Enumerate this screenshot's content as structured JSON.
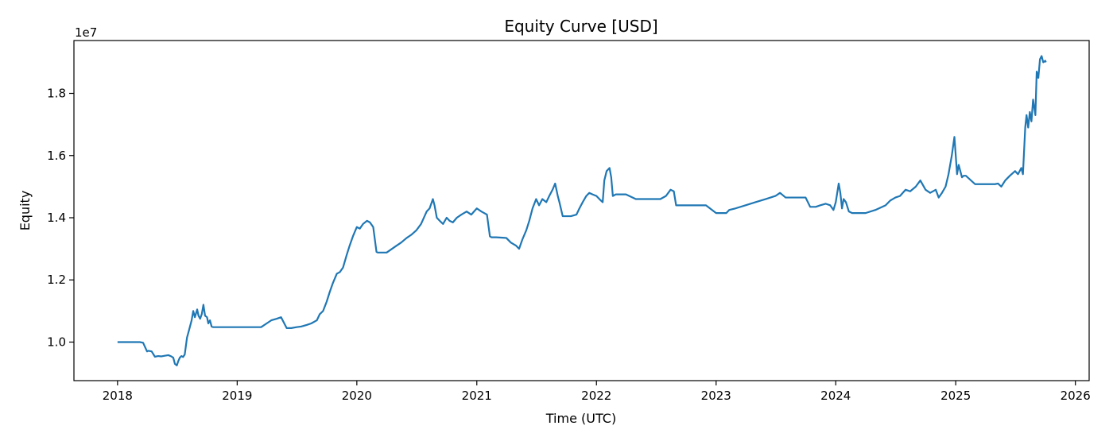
{
  "chart_data": {
    "type": "line",
    "title": "Equity Curve [USD]",
    "xlabel": "Time (UTC)",
    "ylabel": "Equity",
    "y_offset_label": "1e7",
    "y_scale_factor": 10000000,
    "xlim": [
      "2017-08-21",
      "2026-02-12"
    ],
    "ylim": [
      8760000,
      19700000
    ],
    "x_ticks": [
      "2018",
      "2019",
      "2020",
      "2021",
      "2022",
      "2023",
      "2024",
      "2025",
      "2026"
    ],
    "y_ticks": [
      "1.0",
      "1.2",
      "1.4",
      "1.6",
      "1.8"
    ],
    "grid": false,
    "legend": "none",
    "series": [
      {
        "color": "#1f77b4",
        "x": [
          "2018-01-01",
          "2018-01-15",
          "2018-02-01",
          "2018-02-15",
          "2018-03-01",
          "2018-03-10",
          "2018-03-20",
          "2018-04-01",
          "2018-04-05",
          "2018-04-15",
          "2018-04-25",
          "2018-05-05",
          "2018-05-15",
          "2018-05-25",
          "2018-06-05",
          "2018-06-12",
          "2018-06-20",
          "2018-06-25",
          "2018-07-01",
          "2018-07-05",
          "2018-07-10",
          "2018-07-15",
          "2018-07-20",
          "2018-07-25",
          "2018-08-01",
          "2018-08-05",
          "2018-08-10",
          "2018-08-15",
          "2018-08-20",
          "2018-08-25",
          "2018-09-01",
          "2018-09-05",
          "2018-09-10",
          "2018-09-15",
          "2018-09-20",
          "2018-09-25",
          "2018-10-01",
          "2018-10-05",
          "2018-10-10",
          "2018-10-15",
          "2018-10-20",
          "2018-10-25",
          "2018-11-01",
          "2018-12-01",
          "2019-01-01",
          "2019-02-01",
          "2019-03-01",
          "2019-03-15",
          "2019-04-01",
          "2019-04-15",
          "2019-05-01",
          "2019-05-15",
          "2019-06-01",
          "2019-06-15",
          "2019-07-01",
          "2019-07-15",
          "2019-08-01",
          "2019-08-15",
          "2019-09-01",
          "2019-09-10",
          "2019-09-20",
          "2019-10-01",
          "2019-10-10",
          "2019-10-20",
          "2019-11-01",
          "2019-11-10",
          "2019-11-20",
          "2019-12-01",
          "2019-12-10",
          "2019-12-20",
          "2020-01-01",
          "2020-01-10",
          "2020-01-20",
          "2020-02-01",
          "2020-02-10",
          "2020-02-20",
          "2020-03-01",
          "2020-03-05",
          "2020-03-15",
          "2020-04-01",
          "2020-05-01",
          "2020-05-15",
          "2020-06-01",
          "2020-06-15",
          "2020-07-01",
          "2020-07-15",
          "2020-08-01",
          "2020-08-10",
          "2020-08-20",
          "2020-08-25",
          "2020-09-01",
          "2020-09-10",
          "2020-09-20",
          "2020-10-01",
          "2020-10-10",
          "2020-10-20",
          "2020-11-01",
          "2020-11-15",
          "2020-12-01",
          "2020-12-15",
          "2021-01-01",
          "2021-01-15",
          "2021-02-01",
          "2021-02-10",
          "2021-02-15",
          "2021-03-01",
          "2021-04-01",
          "2021-04-15",
          "2021-05-01",
          "2021-05-10",
          "2021-05-20",
          "2021-06-01",
          "2021-06-10",
          "2021-06-20",
          "2021-07-01",
          "2021-07-10",
          "2021-07-20",
          "2021-08-01",
          "2021-08-10",
          "2021-08-20",
          "2021-08-28",
          "2021-09-05",
          "2021-09-10",
          "2021-09-20",
          "2021-10-01",
          "2021-10-15",
          "2021-11-01",
          "2021-11-10",
          "2021-11-20",
          "2021-12-01",
          "2021-12-10",
          "2021-12-20",
          "2022-01-01",
          "2022-01-10",
          "2022-01-20",
          "2022-01-25",
          "2022-02-01",
          "2022-02-10",
          "2022-02-15",
          "2022-02-20",
          "2022-03-01",
          "2022-04-01",
          "2022-05-01",
          "2022-06-01",
          "2022-07-01",
          "2022-07-15",
          "2022-08-01",
          "2022-08-15",
          "2022-08-25",
          "2022-09-01",
          "2022-10-01",
          "2022-11-01",
          "2022-12-01",
          "2023-01-01",
          "2023-02-01",
          "2023-02-10",
          "2023-03-01",
          "2023-04-01",
          "2023-05-01",
          "2023-06-01",
          "2023-07-01",
          "2023-07-15",
          "2023-08-01",
          "2023-09-01",
          "2023-10-01",
          "2023-10-15",
          "2023-11-01",
          "2023-11-15",
          "2023-12-01",
          "2023-12-15",
          "2023-12-25",
          "2024-01-01",
          "2024-01-10",
          "2024-01-15",
          "2024-01-20",
          "2024-01-25",
          "2024-02-01",
          "2024-02-10",
          "2024-02-20",
          "2024-03-01",
          "2024-03-10",
          "2024-04-01",
          "2024-05-01",
          "2024-06-01",
          "2024-06-15",
          "2024-07-01",
          "2024-07-15",
          "2024-08-01",
          "2024-08-15",
          "2024-09-01",
          "2024-09-15",
          "2024-10-01",
          "2024-10-15",
          "2024-11-01",
          "2024-11-10",
          "2024-11-20",
          "2024-12-01",
          "2024-12-10",
          "2024-12-20",
          "2024-12-28",
          "2025-01-05",
          "2025-01-10",
          "2025-01-15",
          "2025-01-20",
          "2025-01-25",
          "2025-02-01",
          "2025-03-01",
          "2025-04-01",
          "2025-05-01",
          "2025-05-10",
          "2025-05-20",
          "2025-06-01",
          "2025-06-15",
          "2025-07-01",
          "2025-07-10",
          "2025-07-20",
          "2025-07-25",
          "2025-08-01",
          "2025-08-05",
          "2025-08-10",
          "2025-08-15",
          "2025-08-20",
          "2025-08-25",
          "2025-09-01",
          "2025-09-05",
          "2025-09-10",
          "2025-09-15",
          "2025-09-20",
          "2025-09-25",
          "2025-10-01",
          "2025-10-03"
        ],
        "y": [
          10000000,
          10000000,
          10000000,
          10000000,
          10000000,
          10000000,
          9980000,
          9700000,
          9720000,
          9700000,
          9530000,
          9550000,
          9540000,
          9560000,
          9580000,
          9550000,
          9500000,
          9300000,
          9250000,
          9380000,
          9500000,
          9550000,
          9520000,
          9600000,
          10150000,
          10300000,
          10500000,
          10700000,
          11000000,
          10800000,
          11050000,
          10850000,
          10750000,
          10900000,
          11200000,
          10850000,
          10800000,
          10600000,
          10700000,
          10500000,
          10480000,
          10480000,
          10480000,
          10480000,
          10480000,
          10480000,
          10480000,
          10480000,
          10600000,
          10700000,
          10750000,
          10800000,
          10450000,
          10450000,
          10480000,
          10500000,
          10550000,
          10600000,
          10700000,
          10900000,
          11000000,
          11300000,
          11600000,
          11900000,
          12200000,
          12250000,
          12400000,
          12800000,
          13100000,
          13400000,
          13700000,
          13650000,
          13800000,
          13900000,
          13850000,
          13700000,
          12900000,
          12880000,
          12880000,
          12880000,
          13100000,
          13200000,
          13350000,
          13450000,
          13600000,
          13800000,
          14200000,
          14300000,
          14600000,
          14400000,
          14000000,
          13900000,
          13800000,
          14000000,
          13900000,
          13850000,
          14000000,
          14100000,
          14200000,
          14100000,
          14300000,
          14200000,
          14100000,
          13400000,
          13370000,
          13370000,
          13350000,
          13200000,
          13100000,
          13000000,
          13300000,
          13600000,
          13900000,
          14300000,
          14600000,
          14400000,
          14600000,
          14500000,
          14700000,
          14900000,
          15100000,
          14700000,
          14500000,
          14050000,
          14050000,
          14050000,
          14100000,
          14300000,
          14500000,
          14700000,
          14800000,
          14750000,
          14700000,
          14600000,
          14500000,
          15200000,
          15500000,
          15600000,
          15300000,
          14700000,
          14750000,
          14750000,
          14600000,
          14600000,
          14600000,
          14600000,
          14700000,
          14900000,
          14850000,
          14400000,
          14400000,
          14400000,
          14400000,
          14150000,
          14150000,
          14250000,
          14300000,
          14400000,
          14500000,
          14600000,
          14700000,
          14800000,
          14650000,
          14650000,
          14650000,
          14350000,
          14350000,
          14400000,
          14450000,
          14400000,
          14250000,
          14500000,
          15100000,
          14800000,
          14300000,
          14600000,
          14500000,
          14200000,
          14150000,
          14150000,
          14150000,
          14150000,
          14250000,
          14400000,
          14550000,
          14650000,
          14700000,
          14900000,
          14850000,
          15000000,
          15200000,
          14900000,
          14800000,
          14900000,
          14650000,
          14800000,
          15000000,
          15400000,
          16000000,
          16600000,
          15400000,
          15700000,
          15500000,
          15300000,
          15350000,
          15350000,
          15080000,
          15080000,
          15080000,
          15100000,
          15000000,
          15200000,
          15350000,
          15500000,
          15400000,
          15600000,
          15400000,
          16900000,
          17300000,
          16900000,
          17400000,
          17100000,
          17800000,
          17300000,
          18700000,
          18500000,
          19100000,
          19200000,
          19000000,
          19050000,
          19000000
        ]
      }
    ]
  }
}
